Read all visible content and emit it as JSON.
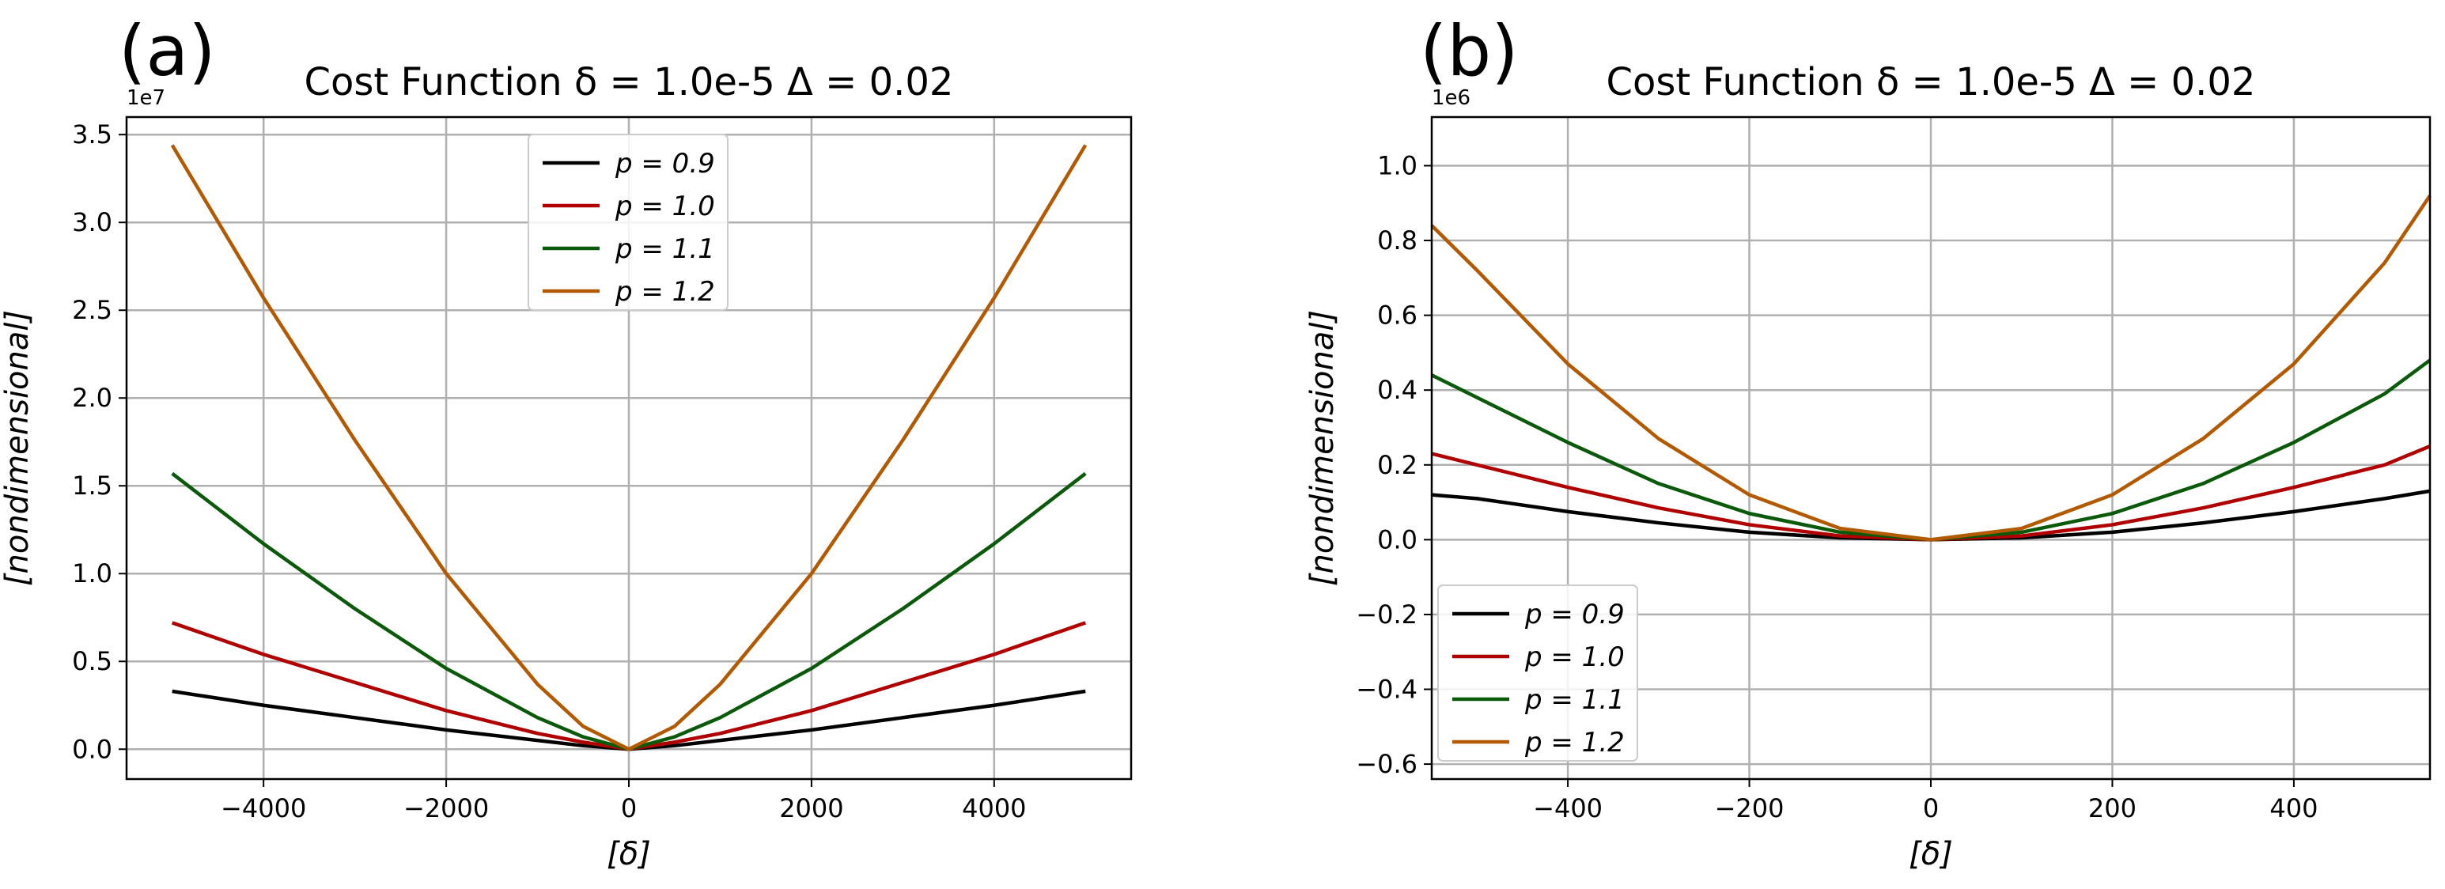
{
  "chart_data": [
    {
      "panel": "(a)",
      "type": "line",
      "title": "Cost Function δ = 1.0e-5 Δ = 0.02",
      "xlabel": "[δ]",
      "ylabel": "[nondimensional]",
      "offset_text": "1e7",
      "scale": 10000000,
      "xlim": [
        -5500,
        5500
      ],
      "ylim": [
        -0.17,
        3.6
      ],
      "xticks": [
        -4000,
        -2000,
        0,
        2000,
        4000
      ],
      "xtick_labels": [
        "−4000",
        "−2000",
        "0",
        "2000",
        "4000"
      ],
      "yticks": [
        0.0,
        0.5,
        1.0,
        1.5,
        2.0,
        2.5,
        3.0,
        3.5
      ],
      "ytick_labels": [
        "0.0",
        "0.5",
        "1.0",
        "1.5",
        "2.0",
        "2.5",
        "3.0",
        "3.5"
      ],
      "grid": true,
      "legend_position": "upper-center",
      "x": [
        -5000,
        -4000,
        -3000,
        -2000,
        -1000,
        -500,
        0,
        500,
        1000,
        2000,
        3000,
        4000,
        5000
      ],
      "series": [
        {
          "name": "p = 0.9",
          "color": "#000000",
          "values": [
            0.33,
            0.25,
            0.18,
            0.11,
            0.05,
            0.02,
            0.0,
            0.02,
            0.05,
            0.11,
            0.18,
            0.25,
            0.33
          ]
        },
        {
          "name": "p = 1.0",
          "color": "#b00000",
          "values": [
            0.72,
            0.54,
            0.38,
            0.22,
            0.09,
            0.04,
            0.0,
            0.04,
            0.09,
            0.22,
            0.38,
            0.54,
            0.72
          ]
        },
        {
          "name": "p = 1.1",
          "color": "#0b5a0b",
          "values": [
            1.57,
            1.17,
            0.8,
            0.46,
            0.18,
            0.07,
            0.0,
            0.07,
            0.18,
            0.46,
            0.8,
            1.17,
            1.57
          ]
        },
        {
          "name": "p = 1.2",
          "color": "#b35900",
          "values": [
            3.44,
            2.57,
            1.76,
            1.0,
            0.37,
            0.13,
            0.0,
            0.13,
            0.37,
            1.0,
            1.76,
            2.57,
            3.44
          ]
        }
      ]
    },
    {
      "panel": "(b)",
      "type": "line",
      "title": "Cost Function δ = 1.0e-5 Δ = 0.02",
      "xlabel": "[δ]",
      "ylabel": "[nondimensional]",
      "offset_text": "1e6",
      "scale": 1000000,
      "xlim": [
        -550,
        550
      ],
      "ylim": [
        -0.64,
        1.13
      ],
      "xticks": [
        -400,
        -200,
        0,
        200,
        400
      ],
      "xtick_labels": [
        "−400",
        "−200",
        "0",
        "200",
        "400"
      ],
      "yticks": [
        -0.6,
        -0.4,
        -0.2,
        0.0,
        0.2,
        0.4,
        0.6,
        0.8,
        1.0
      ],
      "ytick_labels": [
        "−0.6",
        "−0.4",
        "−0.2",
        "0.0",
        "0.2",
        "0.4",
        "0.6",
        "0.8",
        "1.0"
      ],
      "grid": true,
      "legend_position": "lower-left",
      "x": [
        -550,
        -500,
        -400,
        -300,
        -200,
        -100,
        0,
        100,
        200,
        300,
        400,
        500,
        550
      ],
      "series": [
        {
          "name": "p = 0.9",
          "color": "#000000",
          "values": [
            0.12,
            0.11,
            0.075,
            0.045,
            0.02,
            0.005,
            0.0,
            0.005,
            0.02,
            0.045,
            0.075,
            0.11,
            0.13
          ]
        },
        {
          "name": "p = 1.0",
          "color": "#b00000",
          "values": [
            0.23,
            0.2,
            0.14,
            0.085,
            0.04,
            0.01,
            0.0,
            0.01,
            0.04,
            0.085,
            0.14,
            0.2,
            0.25
          ]
        },
        {
          "name": "p = 1.1",
          "color": "#0b5a0b",
          "values": [
            0.44,
            0.38,
            0.26,
            0.15,
            0.07,
            0.02,
            0.0,
            0.02,
            0.07,
            0.15,
            0.26,
            0.39,
            0.48
          ]
        },
        {
          "name": "p = 1.2",
          "color": "#b35900",
          "values": [
            0.84,
            0.72,
            0.47,
            0.27,
            0.12,
            0.03,
            0.0,
            0.03,
            0.12,
            0.27,
            0.47,
            0.74,
            0.92
          ]
        }
      ]
    }
  ]
}
